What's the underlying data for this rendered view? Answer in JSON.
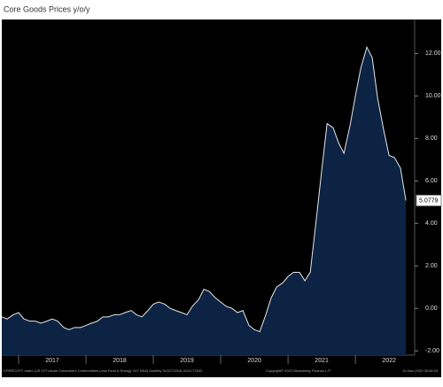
{
  "chart_data": {
    "type": "area",
    "title": "Core Goods Prices y/o/y",
    "source": "CPRRCOTY Index (US CPI Urban Consumers Commodities Less Food & Energy YoY NSA)  Monthly 31OCT2016-31OCT2022",
    "copyright": "Copyright© 2022 Bloomberg Finance L.P.",
    "timestamp": "10-Nov-2022 08:46:33",
    "color": "#0c2344",
    "line_color": "#e6e6e6",
    "x": [
      2016.75,
      2016.83,
      2016.92,
      2017.0,
      2017.08,
      2017.17,
      2017.25,
      2017.33,
      2017.42,
      2017.5,
      2017.58,
      2017.67,
      2017.75,
      2017.83,
      2017.92,
      2018.0,
      2018.08,
      2018.17,
      2018.25,
      2018.33,
      2018.42,
      2018.5,
      2018.58,
      2018.67,
      2018.75,
      2018.83,
      2018.92,
      2019.0,
      2019.08,
      2019.17,
      2019.25,
      2019.33,
      2019.42,
      2019.5,
      2019.58,
      2019.67,
      2019.75,
      2019.83,
      2019.92,
      2020.0,
      2020.08,
      2020.17,
      2020.25,
      2020.33,
      2020.42,
      2020.5,
      2020.58,
      2020.67,
      2020.75,
      2020.83,
      2020.92,
      2021.0,
      2021.08,
      2021.17,
      2021.25,
      2021.33,
      2021.42,
      2021.5,
      2021.58,
      2021.67,
      2021.75,
      2021.83,
      2021.92,
      2022.0,
      2022.08,
      2022.17,
      2022.25,
      2022.33,
      2022.42,
      2022.5,
      2022.58,
      2022.67,
      2022.75
    ],
    "values": [
      -0.4,
      -0.5,
      -0.3,
      -0.2,
      -0.5,
      -0.6,
      -0.6,
      -0.7,
      -0.6,
      -0.5,
      -0.6,
      -0.9,
      -1.0,
      -0.9,
      -0.9,
      -0.8,
      -0.7,
      -0.6,
      -0.4,
      -0.4,
      -0.3,
      -0.3,
      -0.2,
      -0.1,
      -0.3,
      -0.4,
      -0.1,
      0.2,
      0.3,
      0.2,
      0.0,
      -0.1,
      -0.2,
      -0.3,
      0.1,
      0.4,
      0.9,
      0.8,
      0.5,
      0.3,
      0.1,
      0.0,
      -0.2,
      -0.1,
      -0.8,
      -1.0,
      -1.1,
      -0.3,
      0.5,
      1.0,
      1.2,
      1.5,
      1.7,
      1.7,
      1.3,
      1.7,
      4.2,
      6.5,
      8.7,
      8.5,
      7.8,
      7.3,
      8.6,
      10.0,
      11.3,
      12.3,
      11.8,
      9.9,
      8.4,
      7.2,
      7.1,
      6.6,
      5.0779
    ],
    "xlim": [
      2016.75,
      2022.88
    ],
    "xticks": [
      2017,
      2018,
      2019,
      2020,
      2021,
      2022
    ],
    "ylim": [
      -2.2,
      13.6
    ],
    "yticks": [
      {
        "value": -2,
        "label": "-2.00"
      },
      {
        "value": 0,
        "label": "0.00"
      },
      {
        "value": 2,
        "label": "2.00"
      },
      {
        "value": 4,
        "label": "4.00"
      },
      {
        "value": 6,
        "label": "6.00"
      },
      {
        "value": 8,
        "label": "8.00"
      },
      {
        "value": 10,
        "label": "10.00"
      },
      {
        "value": 12,
        "label": "12.00"
      }
    ]
  }
}
